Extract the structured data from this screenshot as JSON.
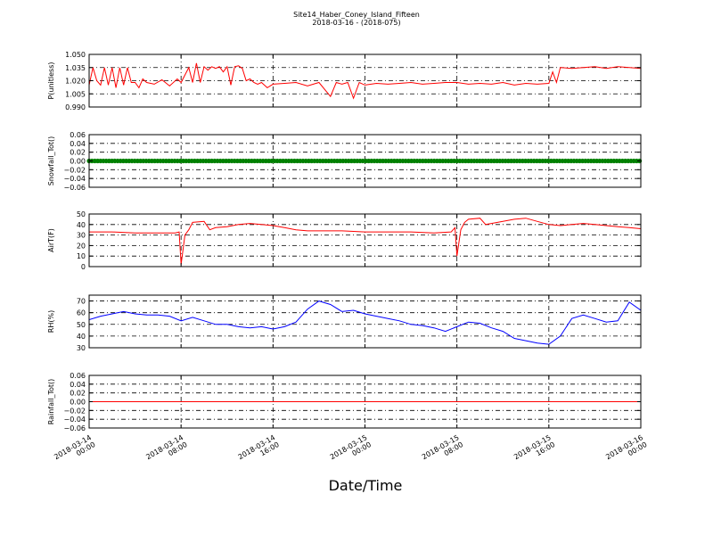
{
  "figure": {
    "title_line1": "Site14_Haber_Coney_Island_Fifteen",
    "title_line2": "2018-03-16 - (2018-075)",
    "xlabel": "Date/Time"
  },
  "x_axis": {
    "range": [
      "2018-03-14 00:00",
      "2018-03-16 00:00"
    ],
    "ticks": [
      {
        "value": "2018-03-14 00:00",
        "line1": "2018-03-14",
        "line2": "00:00"
      },
      {
        "value": "2018-03-14 08:00",
        "line1": "2018-03-14",
        "line2": "08:00"
      },
      {
        "value": "2018-03-14 16:00",
        "line1": "2018-03-14",
        "line2": "16:00"
      },
      {
        "value": "2018-03-15 00:00",
        "line1": "2018-03-15",
        "line2": "00:00"
      },
      {
        "value": "2018-03-15 08:00",
        "line1": "2018-03-15",
        "line2": "08:00"
      },
      {
        "value": "2018-03-15 16:00",
        "line1": "2018-03-15",
        "line2": "16:00"
      },
      {
        "value": "2018-03-16 00:00",
        "line1": "2018-03-16",
        "line2": "00:00"
      }
    ],
    "grid": true
  },
  "chart_data": [
    {
      "type": "line",
      "ylabel": "P(unitless)",
      "ylim": [
        0.99,
        1.05
      ],
      "yticks": [
        "0.990",
        "1.005",
        "1.020",
        "1.035",
        "1.050"
      ],
      "ytick_values": [
        0.99,
        1.005,
        1.02,
        1.035,
        1.05
      ],
      "grid": true,
      "color": "#ff0000",
      "marker": "none",
      "series": [
        {
          "x": [
            "2018-03-14 00:00",
            "2018-03-14 00:20",
            "2018-03-14 00:40",
            "2018-03-14 01:00",
            "2018-03-14 01:20",
            "2018-03-14 01:40",
            "2018-03-14 02:00",
            "2018-03-14 02:20",
            "2018-03-14 02:40",
            "2018-03-14 03:00",
            "2018-03-14 03:20",
            "2018-03-14 03:40",
            "2018-03-14 04:00",
            "2018-03-14 04:20",
            "2018-03-14 04:40",
            "2018-03-14 05:00",
            "2018-03-14 05:40",
            "2018-03-14 06:20",
            "2018-03-14 07:00",
            "2018-03-14 07:40",
            "2018-03-14 08:00",
            "2018-03-14 08:40",
            "2018-03-14 09:00",
            "2018-03-14 09:20",
            "2018-03-14 09:40",
            "2018-03-14 10:00",
            "2018-03-14 10:20",
            "2018-03-14 10:40",
            "2018-03-14 11:00",
            "2018-03-14 11:20",
            "2018-03-14 11:40",
            "2018-03-14 12:00",
            "2018-03-14 12:20",
            "2018-03-14 12:40",
            "2018-03-14 13:00",
            "2018-03-14 13:20",
            "2018-03-14 13:40",
            "2018-03-14 14:00",
            "2018-03-14 14:20",
            "2018-03-14 14:40",
            "2018-03-14 15:00",
            "2018-03-14 15:30",
            "2018-03-14 16:00",
            "2018-03-14 17:00",
            "2018-03-14 18:00",
            "2018-03-14 19:00",
            "2018-03-14 20:00",
            "2018-03-14 21:00",
            "2018-03-14 21:30",
            "2018-03-14 22:00",
            "2018-03-14 22:30",
            "2018-03-14 23:00",
            "2018-03-14 23:30",
            "2018-03-15 00:00",
            "2018-03-15 01:00",
            "2018-03-15 02:00",
            "2018-03-15 03:00",
            "2018-03-15 04:00",
            "2018-03-15 05:00",
            "2018-03-15 06:00",
            "2018-03-15 07:00",
            "2018-03-15 08:00",
            "2018-03-15 09:00",
            "2018-03-15 10:00",
            "2018-03-15 11:00",
            "2018-03-15 12:00",
            "2018-03-15 13:00",
            "2018-03-15 14:00",
            "2018-03-15 15:00",
            "2018-03-15 16:00",
            "2018-03-15 16:20",
            "2018-03-15 16:40",
            "2018-03-15 17:00",
            "2018-03-15 18:00",
            "2018-03-15 19:00",
            "2018-03-15 20:00",
            "2018-03-15 21:00",
            "2018-03-15 22:00",
            "2018-03-15 23:00",
            "2018-03-16 00:00"
          ],
          "y": [
            1.015,
            1.035,
            1.02,
            1.015,
            1.035,
            1.015,
            1.035,
            1.012,
            1.035,
            1.015,
            1.035,
            1.018,
            1.018,
            1.012,
            1.022,
            1.018,
            1.016,
            1.021,
            1.014,
            1.022,
            1.018,
            1.035,
            1.018,
            1.04,
            1.018,
            1.036,
            1.032,
            1.036,
            1.034,
            1.036,
            1.03,
            1.036,
            1.015,
            1.036,
            1.037,
            1.034,
            1.02,
            1.022,
            1.018,
            1.016,
            1.018,
            1.012,
            1.016,
            1.017,
            1.018,
            1.014,
            1.018,
            1.002,
            1.018,
            1.016,
            1.018,
            1.0,
            1.018,
            1.015,
            1.017,
            1.016,
            1.017,
            1.018,
            1.016,
            1.017,
            1.018,
            1.018,
            1.016,
            1.017,
            1.016,
            1.018,
            1.015,
            1.017,
            1.016,
            1.017,
            1.03,
            1.018,
            1.035,
            1.034,
            1.035,
            1.036,
            1.034,
            1.036,
            1.035,
            1.034
          ]
        }
      ]
    },
    {
      "type": "line",
      "ylabel": "Snowfall_Tot()",
      "ylim": [
        -0.06,
        0.06
      ],
      "yticks": [
        "0.06",
        "0.04",
        "0.02",
        "0.00",
        "−0.02",
        "−0.04",
        "−0.06"
      ],
      "ytick_values": [
        0.06,
        0.04,
        0.02,
        0.0,
        -0.02,
        -0.04,
        -0.06
      ],
      "grid": true,
      "color": "#008000",
      "marker": "circle",
      "series": [
        {
          "x": [
            "2018-03-14 00:00",
            "2018-03-16 00:00"
          ],
          "y": [
            0.0,
            0.0
          ]
        }
      ]
    },
    {
      "type": "line",
      "ylabel": "AirT(F)",
      "ylim": [
        0,
        50
      ],
      "yticks": [
        "0",
        "10",
        "20",
        "30",
        "40",
        "50"
      ],
      "ytick_values": [
        0,
        10,
        20,
        30,
        40,
        50
      ],
      "grid": true,
      "color": "#ff0000",
      "marker": "none",
      "series": [
        {
          "x": [
            "2018-03-14 00:00",
            "2018-03-14 02:00",
            "2018-03-14 04:00",
            "2018-03-14 06:00",
            "2018-03-14 07:30",
            "2018-03-14 07:50",
            "2018-03-14 08:00",
            "2018-03-14 08:20",
            "2018-03-14 08:40",
            "2018-03-14 09:00",
            "2018-03-14 10:00",
            "2018-03-14 10:30",
            "2018-03-14 11:00",
            "2018-03-14 12:00",
            "2018-03-14 13:00",
            "2018-03-14 14:00",
            "2018-03-14 15:00",
            "2018-03-14 16:00",
            "2018-03-14 17:00",
            "2018-03-14 18:00",
            "2018-03-14 19:00",
            "2018-03-14 20:00",
            "2018-03-14 22:00",
            "2018-03-15 00:00",
            "2018-03-15 02:00",
            "2018-03-15 04:00",
            "2018-03-15 06:00",
            "2018-03-15 07:30",
            "2018-03-15 07:50",
            "2018-03-15 08:00",
            "2018-03-15 08:20",
            "2018-03-15 08:40",
            "2018-03-15 09:00",
            "2018-03-15 10:00",
            "2018-03-15 10:30",
            "2018-03-15 11:00",
            "2018-03-15 12:00",
            "2018-03-15 13:00",
            "2018-03-15 14:00",
            "2018-03-15 15:00",
            "2018-03-15 16:00",
            "2018-03-15 17:00",
            "2018-03-15 18:00",
            "2018-03-15 19:00",
            "2018-03-15 20:00",
            "2018-03-15 21:00",
            "2018-03-15 22:00",
            "2018-03-15 23:00",
            "2018-03-16 00:00"
          ],
          "y": [
            33,
            33,
            32,
            32,
            32,
            33,
            2,
            30,
            35,
            42,
            43,
            35,
            37,
            38,
            40,
            41,
            40,
            39,
            37,
            35,
            34,
            34,
            34,
            33,
            33,
            33,
            32,
            33,
            37,
            10,
            35,
            42,
            45,
            46,
            40,
            41,
            43,
            45,
            46,
            43,
            40,
            39,
            40,
            41,
            40,
            39,
            38,
            37,
            36
          ]
        }
      ]
    },
    {
      "type": "line",
      "ylabel": "RH(%)",
      "ylim": [
        30,
        75
      ],
      "yticks": [
        "30",
        "40",
        "50",
        "60",
        "70"
      ],
      "ytick_values": [
        30,
        40,
        50,
        60,
        70
      ],
      "grid": true,
      "color": "#0000ff",
      "marker": "none",
      "series": [
        {
          "x": [
            "2018-03-14 00:00",
            "2018-03-14 01:00",
            "2018-03-14 02:00",
            "2018-03-14 03:00",
            "2018-03-14 04:00",
            "2018-03-14 05:00",
            "2018-03-14 06:00",
            "2018-03-14 07:00",
            "2018-03-14 08:00",
            "2018-03-14 09:00",
            "2018-03-14 10:00",
            "2018-03-14 11:00",
            "2018-03-14 12:00",
            "2018-03-14 13:00",
            "2018-03-14 14:00",
            "2018-03-14 15:00",
            "2018-03-14 16:00",
            "2018-03-14 17:00",
            "2018-03-14 18:00",
            "2018-03-14 19:00",
            "2018-03-14 20:00",
            "2018-03-14 21:00",
            "2018-03-14 22:00",
            "2018-03-14 23:00",
            "2018-03-15 00:00",
            "2018-03-15 01:00",
            "2018-03-15 02:00",
            "2018-03-15 03:00",
            "2018-03-15 04:00",
            "2018-03-15 05:00",
            "2018-03-15 06:00",
            "2018-03-15 07:00",
            "2018-03-15 08:00",
            "2018-03-15 09:00",
            "2018-03-15 10:00",
            "2018-03-15 11:00",
            "2018-03-15 12:00",
            "2018-03-15 13:00",
            "2018-03-15 14:00",
            "2018-03-15 15:00",
            "2018-03-15 16:00",
            "2018-03-15 17:00",
            "2018-03-15 18:00",
            "2018-03-15 19:00",
            "2018-03-15 20:00",
            "2018-03-15 21:00",
            "2018-03-15 22:00",
            "2018-03-15 23:00",
            "2018-03-16 00:00"
          ],
          "y": [
            54,
            57,
            59,
            61,
            59,
            58,
            58,
            57,
            53,
            56,
            53,
            50,
            50,
            48,
            47,
            48,
            46,
            48,
            52,
            63,
            70,
            67,
            61,
            62,
            59,
            57,
            55,
            53,
            50,
            49,
            47,
            44,
            48,
            52,
            51,
            47,
            44,
            38,
            36,
            34,
            33,
            40,
            55,
            58,
            55,
            52,
            53,
            69,
            62
          ]
        }
      ]
    },
    {
      "type": "line",
      "ylabel": "Rainfall_Tot()",
      "ylim": [
        -0.06,
        0.06
      ],
      "yticks": [
        "0.06",
        "0.04",
        "0.02",
        "0.00",
        "−0.02",
        "−0.04",
        "−0.06"
      ],
      "ytick_values": [
        0.06,
        0.04,
        0.02,
        0.0,
        -0.02,
        -0.04,
        -0.06
      ],
      "grid": true,
      "color": "#ff0000",
      "marker": "none",
      "series": [
        {
          "x": [
            "2018-03-14 00:00",
            "2018-03-16 00:00"
          ],
          "y": [
            0.0,
            0.0
          ]
        }
      ]
    }
  ]
}
